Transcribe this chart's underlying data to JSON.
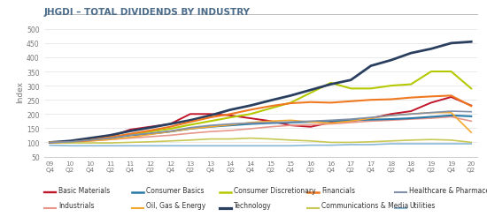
{
  "title": "JHGDI – TOTAL DIVIDENDS BY INDUSTRY",
  "ylabel": "Index",
  "ylim": [
    50,
    510
  ],
  "yticks": [
    50,
    100,
    150,
    200,
    250,
    300,
    350,
    400,
    450,
    500
  ],
  "x_labels_top": [
    "09",
    "10",
    "10",
    "11",
    "11",
    "12",
    "12",
    "13",
    "13",
    "14",
    "14",
    "15",
    "15",
    "16",
    "16",
    "17",
    "17",
    "18",
    "18",
    "19",
    "19",
    "20"
  ],
  "x_labels_bot": [
    "Q4",
    "Q2",
    "Q4",
    "Q2",
    "Q4",
    "Q2",
    "Q4",
    "Q2",
    "Q4",
    "Q2",
    "Q4",
    "Q2",
    "Q4",
    "Q2",
    "Q4",
    "Q2",
    "Q4",
    "Q2",
    "Q4",
    "Q2",
    "Q4",
    "Q2"
  ],
  "series": {
    "Basic Materials": {
      "color": "#c0152a",
      "lw": 1.4,
      "values": [
        100,
        102,
        110,
        120,
        145,
        155,
        165,
        200,
        200,
        195,
        185,
        175,
        160,
        155,
        170,
        175,
        185,
        200,
        210,
        240,
        260,
        230
      ]
    },
    "Industrials": {
      "color": "#e8958a",
      "lw": 1.2,
      "values": [
        100,
        100,
        105,
        110,
        115,
        120,
        125,
        132,
        138,
        142,
        148,
        155,
        160,
        162,
        165,
        170,
        175,
        178,
        182,
        185,
        190,
        175
      ]
    },
    "Consumer Basics": {
      "color": "#2878a8",
      "lw": 1.5,
      "values": [
        100,
        102,
        108,
        115,
        125,
        130,
        138,
        148,
        155,
        160,
        165,
        168,
        170,
        172,
        175,
        178,
        180,
        182,
        185,
        190,
        195,
        192
      ]
    },
    "Oil, Gas & Energy": {
      "color": "#f4a830",
      "lw": 1.2,
      "values": [
        100,
        100,
        105,
        110,
        118,
        128,
        138,
        148,
        155,
        162,
        170,
        175,
        178,
        172,
        168,
        175,
        185,
        195,
        200,
        205,
        205,
        135
      ]
    },
    "Consumer Discretionary": {
      "color": "#b5c900",
      "lw": 1.5,
      "values": [
        100,
        102,
        110,
        118,
        128,
        138,
        148,
        162,
        175,
        188,
        200,
        220,
        240,
        275,
        310,
        290,
        290,
        300,
        305,
        350,
        350,
        290
      ]
    },
    "Technology": {
      "color": "#2a3f5f",
      "lw": 2.0,
      "values": [
        100,
        105,
        115,
        125,
        140,
        152,
        165,
        178,
        195,
        215,
        230,
        248,
        265,
        285,
        305,
        320,
        370,
        390,
        415,
        430,
        450,
        455
      ]
    },
    "Financials": {
      "color": "#f07820",
      "lw": 1.5,
      "values": [
        100,
        100,
        108,
        118,
        130,
        142,
        155,
        172,
        188,
        200,
        215,
        228,
        238,
        242,
        240,
        245,
        250,
        252,
        258,
        262,
        265,
        228
      ]
    },
    "Communications & Media": {
      "color": "#c8c855",
      "lw": 1.2,
      "values": [
        100,
        98,
        98,
        98,
        100,
        102,
        105,
        108,
        112,
        112,
        115,
        112,
        108,
        105,
        100,
        100,
        102,
        105,
        108,
        110,
        108,
        100
      ]
    },
    "Healthcare & Pharmaceuticals": {
      "color": "#8090a8",
      "lw": 1.2,
      "values": [
        100,
        102,
        108,
        115,
        125,
        132,
        140,
        152,
        160,
        165,
        168,
        170,
        172,
        175,
        178,
        182,
        188,
        195,
        200,
        205,
        210,
        208
      ]
    },
    "Utilities": {
      "color": "#88b8d8",
      "lw": 1.2,
      "values": [
        90,
        88,
        88,
        88,
        88,
        88,
        88,
        88,
        88,
        88,
        88,
        88,
        88,
        90,
        90,
        92,
        92,
        95,
        95,
        95,
        95,
        95
      ]
    }
  },
  "legend_row1": [
    {
      "label": "Basic Materials",
      "color": "#c0152a",
      "lw": 1.4
    },
    {
      "label": "Consumer Basics",
      "color": "#2878a8",
      "lw": 1.5
    },
    {
      "label": "Consumer Discretionary",
      "color": "#b5c900",
      "lw": 1.5
    },
    {
      "label": "Financials",
      "color": "#f07820",
      "lw": 1.5
    },
    {
      "label": "Healthcare & Pharmaceuticals",
      "color": "#8090a8",
      "lw": 1.2
    }
  ],
  "legend_row2": [
    {
      "label": "Industrials",
      "color": "#e8958a",
      "lw": 1.2
    },
    {
      "label": "Oil, Gas & Energy",
      "color": "#f4a830",
      "lw": 1.2
    },
    {
      "label": "Technology",
      "color": "#2a3f5f",
      "lw": 2.0
    },
    {
      "label": "Communications & Media",
      "color": "#c8c855",
      "lw": 1.2
    },
    {
      "label": "Utilities",
      "color": "#88b8d8",
      "lw": 1.2
    }
  ],
  "title_color": "#4a6b8a",
  "title_fontsize": 7.5,
  "tick_fontsize": 5.5,
  "ylabel_fontsize": 6.5,
  "legend_fontsize": 5.5
}
